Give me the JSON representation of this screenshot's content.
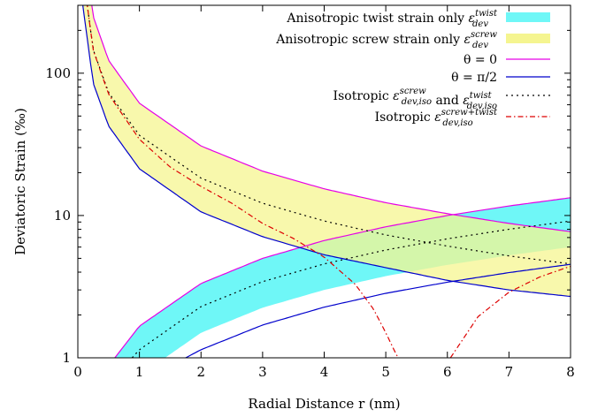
{
  "chart_data": {
    "type": "line",
    "xlabel": "Radial Distance r (nm)",
    "ylabel": "Deviatoric Strain (‰)",
    "xlim": [
      0,
      8
    ],
    "ylim": [
      1,
      300
    ],
    "y_scale": "log",
    "grid": false,
    "legend_position": "top-right",
    "x_ticks": [
      "0",
      "1",
      "2",
      "3",
      "4",
      "5",
      "6",
      "7",
      "8"
    ],
    "y_ticks": [
      "1",
      "10",
      "100"
    ],
    "bands": [
      {
        "name": "Anisotropic twist strain only ε_dev^twist",
        "color": "#6ff7f7",
        "x": [
          0.6,
          1,
          2,
          3,
          4,
          5,
          6,
          7,
          8
        ],
        "lower": [
          0.55,
          0.75,
          1.5,
          2.25,
          3.0,
          3.75,
          4.5,
          5.25,
          6.0
        ],
        "upper": [
          1.0,
          1.67,
          3.33,
          5.0,
          6.67,
          8.33,
          10.0,
          11.67,
          13.33
        ]
      },
      {
        "name": "Anisotropic screw strain only ε_dev^screw",
        "color": "#f5f590",
        "x": [
          0.06,
          0.25,
          0.5,
          1,
          2,
          3,
          4,
          5,
          6,
          7,
          8
        ],
        "lower": [
          350,
          85,
          42.5,
          21.3,
          10.6,
          7.1,
          5.3,
          4.3,
          3.5,
          3.0,
          2.7
        ],
        "upper": [
          1000,
          250,
          123,
          61.5,
          30.8,
          20.5,
          15.4,
          12.3,
          10.3,
          8.8,
          7.7
        ]
      }
    ],
    "series": [
      {
        "name": "θ = 0",
        "color": "#e600e6",
        "style": "solid",
        "curves": [
          {
            "x": [
              0.06,
              0.25,
              0.5,
              1,
              2,
              3,
              4,
              5,
              6,
              7,
              8
            ],
            "y": [
              1000,
              250,
              123,
              61.5,
              30.8,
              20.5,
              15.4,
              12.3,
              10.3,
              8.8,
              7.7
            ]
          },
          {
            "x": [
              0.6,
              1,
              2,
              3,
              4,
              5,
              6,
              7,
              8
            ],
            "y": [
              1.0,
              1.67,
              3.33,
              5.0,
              6.67,
              8.33,
              10.0,
              11.67,
              13.33
            ]
          }
        ]
      },
      {
        "name": "θ = π/2",
        "color": "#0000cc",
        "style": "solid",
        "curves": [
          {
            "x": [
              0.06,
              0.25,
              0.5,
              1,
              2,
              3,
              4,
              5,
              6,
              7,
              8
            ],
            "y": [
              350,
              85,
              42.5,
              21.3,
              10.6,
              7.1,
              5.3,
              4.3,
              3.5,
              3.0,
              2.7
            ]
          },
          {
            "x": [
              1.75,
              2,
              3,
              4,
              5,
              6,
              7,
              8
            ],
            "y": [
              1.0,
              1.14,
              1.7,
              2.27,
              2.84,
              3.4,
              3.97,
              4.54
            ]
          }
        ]
      },
      {
        "name": "Isotropic ε_dev,iso^screw and ε_dev,iso^twist",
        "color": "#000000",
        "style": "dotted",
        "curves": [
          {
            "x": [
              0.06,
              0.25,
              0.5,
              1,
              2,
              3,
              4,
              5,
              6,
              7,
              8
            ],
            "y": [
              600,
              146,
              73,
              36.6,
              18.3,
              12.2,
              9.15,
              7.3,
              6.1,
              5.2,
              4.57
            ]
          },
          {
            "x": [
              0.88,
              1,
              2,
              3,
              4,
              5,
              6,
              7,
              8
            ],
            "y": [
              1.0,
              1.14,
              2.29,
              3.43,
              4.57,
              5.72,
              6.86,
              8.0,
              9.15
            ]
          }
        ]
      },
      {
        "name": "Isotropic ε_dev,iso^screw+twist",
        "color": "#dd0000",
        "style": "dashdot",
        "curves": [
          {
            "x": [
              0.06,
              0.25,
              0.5,
              1,
              1.5,
              2,
              2.5,
              3,
              3.5,
              4,
              4.5,
              4.8,
              5.0,
              5.15,
              5.2
            ],
            "y": [
              600,
              145,
              71,
              34.3,
              21.9,
              16.0,
              12.2,
              8.8,
              6.9,
              5.1,
              3.3,
              2.2,
              1.5,
              1.1,
              1.0
            ]
          },
          {
            "x": [
              6.05,
              6.2,
              6.5,
              7,
              7.5,
              8
            ],
            "y": [
              1.0,
              1.25,
              1.95,
              2.89,
              3.7,
              4.4
            ]
          }
        ]
      }
    ]
  },
  "legend": [
    {
      "kind": "band",
      "color": "#6ff7f7",
      "label": "Anisotropic twist strain only",
      "sym": "ε",
      "sup": "twist",
      "sub": "dev"
    },
    {
      "kind": "band",
      "color": "#f5f590",
      "label": "Anisotropic screw strain only",
      "sym": "ε",
      "sup": "screw",
      "sub": "dev"
    },
    {
      "kind": "solid",
      "color": "#e600e6",
      "label": "θ = 0"
    },
    {
      "kind": "solid",
      "color": "#0000cc",
      "label": "θ = π/2"
    },
    {
      "kind": "dotted",
      "color": "#000000",
      "label": "Isotropic",
      "sym": "ε",
      "sup": "screw",
      "sub": "dev,iso",
      "mid": "and",
      "sym2": "ε",
      "sup2": "twist",
      "sub2": "dev,iso"
    },
    {
      "kind": "dashdot",
      "color": "#dd0000",
      "label": "Isotropic",
      "sym": "ε",
      "sup": "screw+twist",
      "sub": "dev,iso"
    }
  ]
}
